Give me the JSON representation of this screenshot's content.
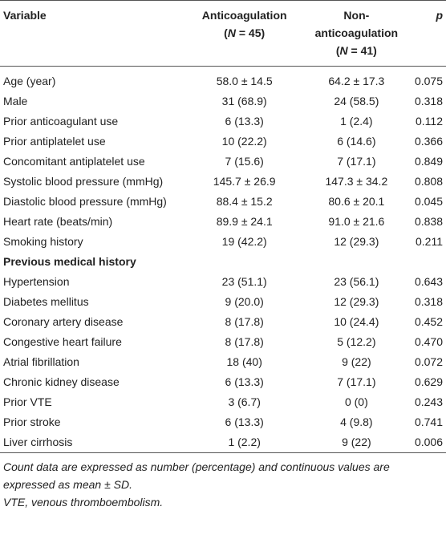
{
  "table": {
    "header": {
      "variable": "Variable",
      "group1": {
        "name": "Anticoagulation",
        "open": "(",
        "symbol": "N",
        "rest": " = 45)"
      },
      "group2": {
        "name": "Non-anticoagulation",
        "open": "(",
        "symbol": "N",
        "rest": " = 41)"
      },
      "p": "p"
    },
    "rows": [
      [
        "Age (year)",
        "58.0 ± 14.5",
        "64.2 ± 17.3",
        "0.075"
      ],
      [
        "Male",
        "31 (68.9)",
        "24 (58.5)",
        "0.318"
      ],
      [
        "Prior anticoagulant use",
        "6 (13.3)",
        "1 (2.4)",
        "0.112"
      ],
      [
        "Prior antiplatelet use",
        "10 (22.2)",
        "6 (14.6)",
        "0.366"
      ],
      [
        "Concomitant antiplatelet use",
        "7 (15.6)",
        "7 (17.1)",
        "0.849"
      ],
      [
        "Systolic blood pressure (mmHg)",
        "145.7 ± 26.9",
        "147.3 ± 34.2",
        "0.808"
      ],
      [
        "Diastolic blood pressure (mmHg)",
        "88.4 ± 15.2",
        "80.6 ± 20.1",
        "0.045"
      ],
      [
        "Heart rate (beats/min)",
        "89.9 ± 24.1",
        "91.0 ± 21.6",
        "0.838"
      ],
      [
        "Smoking history",
        "19 (42.2)",
        "12 (29.3)",
        "0.211"
      ],
      [
        "Previous medical history"
      ],
      [
        "Hypertension",
        "23 (51.1)",
        "23 (56.1)",
        "0.643"
      ],
      [
        "Diabetes mellitus",
        "9 (20.0)",
        "12 (29.3)",
        "0.318"
      ],
      [
        "Coronary artery disease",
        "8 (17.8)",
        "10 (24.4)",
        "0.452"
      ],
      [
        "Congestive heart failure",
        "8 (17.8)",
        "5 (12.2)",
        "0.470"
      ],
      [
        "Atrial fibrillation",
        "18 (40)",
        "9 (22)",
        "0.072"
      ],
      [
        "Chronic kidney disease",
        "6 (13.3)",
        "7 (17.1)",
        "0.629"
      ],
      [
        "Prior VTE",
        "3 (6.7)",
        "0 (0)",
        "0.243"
      ],
      [
        "Prior stroke",
        "6 (13.3)",
        "4 (9.8)",
        "0.741"
      ],
      [
        "Liver cirrhosis",
        "1 (2.2)",
        "9 (22)",
        "0.006"
      ]
    ],
    "footnotes": [
      "Count data are expressed as number (percentage) and continuous values are expressed as mean ± SD.",
      "VTE, venous thromboembolism."
    ]
  }
}
